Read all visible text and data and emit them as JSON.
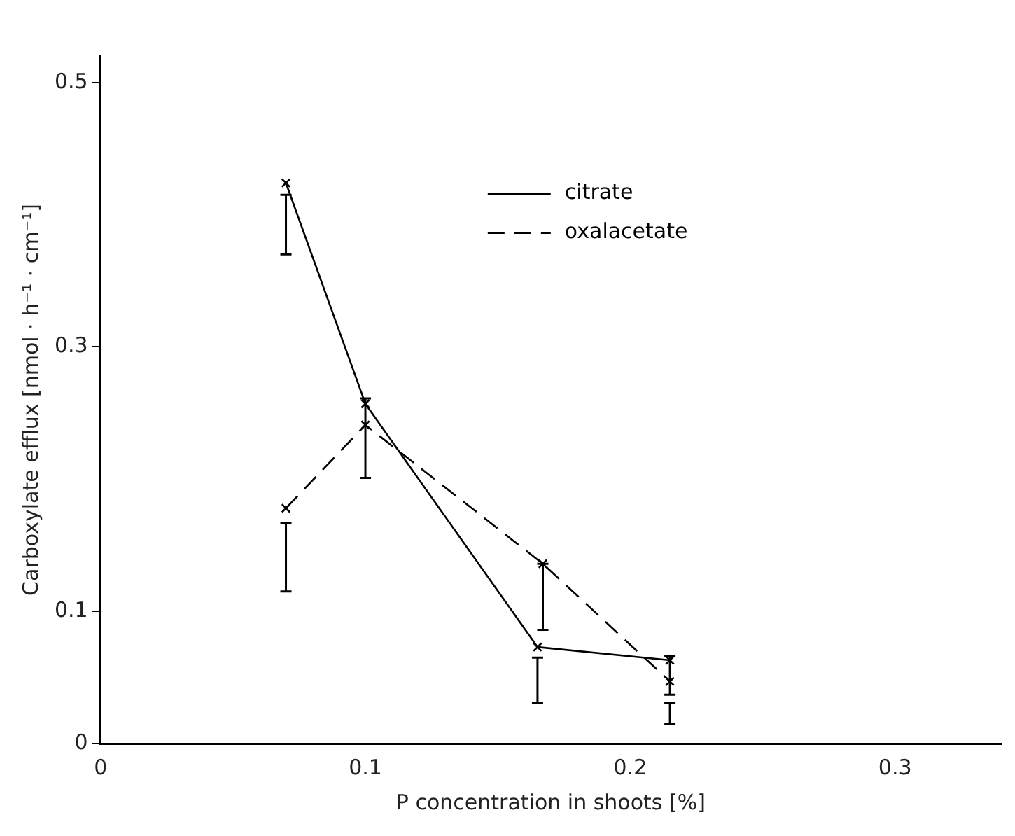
{
  "chart_data": {
    "type": "line",
    "xlabel": "P concentration in shoots [%]",
    "ylabel": "Carboxylate efflux [nmol · h⁻¹ · cm⁻¹]",
    "xlim": [
      0,
      0.34
    ],
    "xticks": [
      0,
      0.1,
      0.2,
      0.3
    ],
    "ylim": [
      0,
      0.52
    ],
    "yticks": [
      0,
      0.1,
      0.3,
      0.5
    ],
    "grid": false,
    "legend": "top",
    "marker": "cross",
    "series": [
      {
        "name": "citrate",
        "color": "#000000",
        "line_style": "solid",
        "x": [
          0.07,
          0.1,
          0.165,
          0.215
        ],
        "values": [
          0.424,
          0.257,
          0.073,
          0.063
        ],
        "errors": [
          [
            0.37,
            0.415
          ],
          null,
          [
            0.031,
            0.065
          ],
          [
            0.037,
            0.066
          ]
        ]
      },
      {
        "name": "oxalacetate",
        "color": "#000000",
        "line_style": "dashed",
        "x": [
          0.07,
          0.1,
          0.167,
          0.215
        ],
        "values": [
          0.178,
          0.241,
          0.136,
          0.047
        ],
        "errors": [
          [
            0.115,
            0.167
          ],
          [
            0.201,
            0.261
          ],
          [
            0.086,
            0.136
          ],
          [
            0.015,
            0.031
          ]
        ]
      }
    ]
  }
}
